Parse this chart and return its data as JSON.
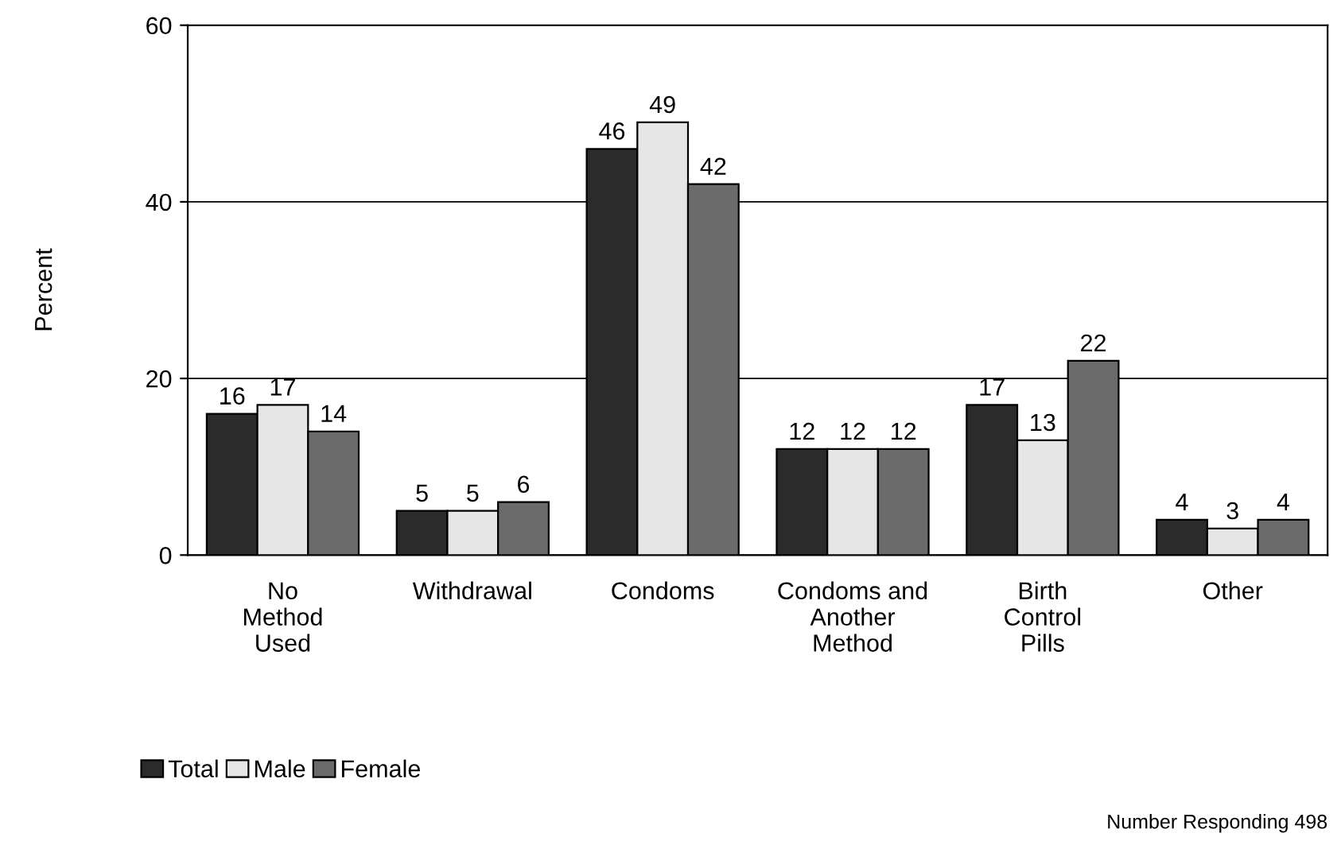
{
  "chart_data": {
    "type": "bar",
    "ylabel": "Percent",
    "categories": [
      "No\nMethod\nUsed",
      "Withdrawal",
      "Condoms",
      "Condoms and\nAnother\nMethod",
      "Birth\nControl\nPills",
      "Other"
    ],
    "series": [
      {
        "name": "Total",
        "color": "#2b2b2b",
        "values": [
          16,
          5,
          46,
          12,
          17,
          4
        ]
      },
      {
        "name": "Male",
        "color": "#e6e6e6",
        "values": [
          17,
          5,
          49,
          12,
          13,
          3
        ]
      },
      {
        "name": "Female",
        "color": "#6b6b6b",
        "values": [
          14,
          6,
          42,
          12,
          22,
          4
        ]
      }
    ],
    "ylim": [
      0,
      60
    ],
    "yticks": [
      0,
      20,
      40,
      60
    ],
    "grid": "y",
    "legend": "bottom left",
    "data_labels": true,
    "annotations": [
      "Number Responding 498"
    ]
  }
}
